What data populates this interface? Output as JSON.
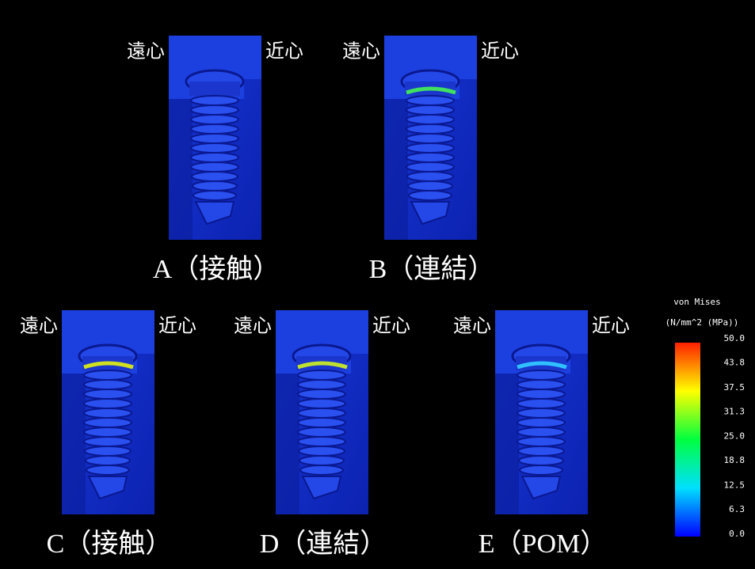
{
  "panels": [
    {
      "label": "A（接触）",
      "left": "遠心",
      "right": "近心"
    },
    {
      "label": "B（連結）",
      "left": "遠心",
      "right": "近心"
    },
    {
      "label": "C（接触）",
      "left": "遠心",
      "right": "近心"
    },
    {
      "label": "D（連結）",
      "left": "遠心",
      "right": "近心"
    },
    {
      "label": "E（POM）",
      "left": "遠心",
      "right": "近心"
    }
  ],
  "colorbar": {
    "title": "von Mises",
    "unit": "(N/mm^2 (MPa))",
    "lim": [
      0,
      50
    ],
    "ticks": [
      {
        "value": 50,
        "label": "50.0"
      },
      {
        "value": 43.8,
        "label": "43.8"
      },
      {
        "value": 37.5,
        "label": "37.5"
      },
      {
        "value": 31.3,
        "label": "31.3"
      },
      {
        "value": 25,
        "label": "25.0"
      },
      {
        "value": 18.8,
        "label": "18.8"
      },
      {
        "value": 12.5,
        "label": "12.5"
      },
      {
        "value": 6.3,
        "label": "6.3"
      },
      {
        "value": 0,
        "label": "0.0"
      }
    ]
  }
}
